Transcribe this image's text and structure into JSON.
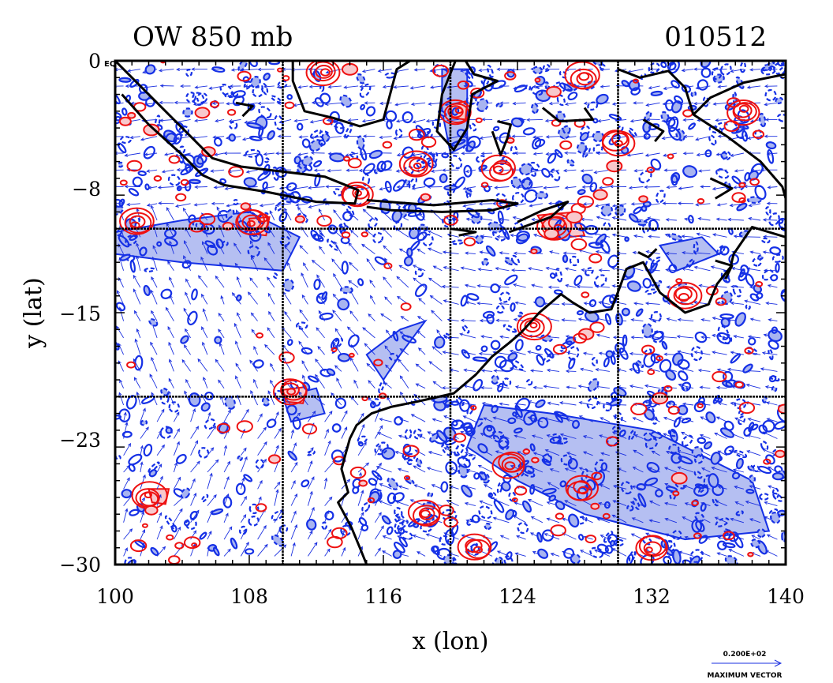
{
  "chart_data": {
    "type": "vector-contour-map",
    "title": "OW 850 mb",
    "date_label": "010512",
    "xlabel": "x (lon)",
    "ylabel": "y (lat)",
    "xlim": [
      100,
      140
    ],
    "ylim": [
      -30,
      0
    ],
    "x_ticks": [
      100,
      108,
      116,
      124,
      132,
      140
    ],
    "x_tick_labels": [
      "100",
      "108",
      "116",
      "124",
      "132",
      "140"
    ],
    "y_ticks": [
      0,
      -8,
      -15,
      -23,
      -30
    ],
    "y_tick_labels": [
      "0",
      "−8",
      "−15",
      "−23",
      "−30"
    ],
    "y_top_tag": "EQ",
    "grid_lon": [
      110,
      120,
      130
    ],
    "grid_lat": [
      -10,
      -20
    ],
    "vector_legend": {
      "value_label": "0.200E+02",
      "caption": "MAXIMUM VECTOR"
    },
    "colors": {
      "positive_contour": "#ee1111",
      "positive_fill": "#f8c8cc",
      "negative_contour": "#1530e6",
      "negative_fill": "#a8b4f0",
      "vector": "#1a2fe0",
      "coastline": "#000000",
      "grid": "#000000"
    },
    "red_contour_centers": [
      [
        126.3,
        -9.8
      ],
      [
        120.4,
        -3.0
      ],
      [
        114.5,
        -7.9
      ],
      [
        110.5,
        -19.7
      ],
      [
        108.2,
        -9.6
      ],
      [
        102.0,
        -26.0
      ],
      [
        101.3,
        -9.7
      ],
      [
        118.0,
        -6.2
      ],
      [
        123.0,
        -6.5
      ],
      [
        128.0,
        -1.0
      ],
      [
        121.5,
        -29.0
      ],
      [
        132.0,
        -29.0
      ],
      [
        127.8,
        -25.5
      ],
      [
        134.0,
        -14.0
      ],
      [
        137.5,
        -3.0
      ],
      [
        130.0,
        -4.8
      ],
      [
        112.5,
        -0.7
      ],
      [
        125.0,
        -15.8
      ],
      [
        118.5,
        -27.0
      ],
      [
        123.5,
        -24.0
      ]
    ],
    "blue_fill_regions": [
      [
        [
          100,
          -10.2
        ],
        [
          104,
          -9.5
        ],
        [
          108,
          -9
        ],
        [
          111,
          -10.5
        ],
        [
          110,
          -12.5
        ],
        [
          104,
          -12.0
        ],
        [
          100,
          -11.5
        ]
      ],
      [
        [
          122,
          -20.5
        ],
        [
          126,
          -21
        ],
        [
          132,
          -22
        ],
        [
          138,
          -25
        ],
        [
          139,
          -28
        ],
        [
          134,
          -28.5
        ],
        [
          128,
          -27
        ],
        [
          124,
          -25
        ],
        [
          121,
          -23
        ]
      ],
      [
        [
          132.5,
          -11
        ],
        [
          135,
          -10.5
        ],
        [
          136,
          -11.5
        ],
        [
          133.5,
          -12.5
        ]
      ],
      [
        [
          115,
          -17.5
        ],
        [
          117,
          -16
        ],
        [
          118.5,
          -15.5
        ],
        [
          117,
          -17.5
        ],
        [
          116,
          -19
        ]
      ],
      [
        [
          110,
          -20
        ],
        [
          112,
          -19.5
        ],
        [
          112.5,
          -21
        ],
        [
          110.5,
          -21.5
        ]
      ],
      [
        [
          119.5,
          -0.5
        ],
        [
          121,
          -0.5
        ],
        [
          121,
          -5
        ],
        [
          120,
          -5.5
        ],
        [
          119.5,
          -3
        ]
      ]
    ],
    "pink_fill_regions": [
      [
        [
          125.2,
          -9.2
        ],
        [
          127.5,
          -9.0
        ],
        [
          128.0,
          -10.4
        ],
        [
          126.0,
          -10.6
        ]
      ],
      [
        [
          110.0,
          -19.6
        ],
        [
          111.5,
          -19.4
        ],
        [
          111.2,
          -20.4
        ],
        [
          110.2,
          -20.3
        ]
      ],
      [
        [
          102.0,
          -25.5
        ],
        [
          103.2,
          -25.5
        ],
        [
          103.0,
          -26.4
        ],
        [
          102.2,
          -26.3
        ]
      ],
      [
        [
          108.0,
          -9.4
        ],
        [
          109.2,
          -9.3
        ],
        [
          109.0,
          -10.4
        ],
        [
          108.1,
          -10.3
        ]
      ],
      [
        [
          120.0,
          -2.6
        ],
        [
          121.0,
          -2.4
        ],
        [
          120.9,
          -3.5
        ],
        [
          120.1,
          -3.4
        ]
      ]
    ],
    "coastlines": [
      [
        [
          100.0,
          0.0
        ],
        [
          102.5,
          -2.5
        ],
        [
          104.5,
          -4.5
        ],
        [
          105.8,
          -5.8
        ],
        [
          107.5,
          -6.3
        ],
        [
          110.0,
          -6.6
        ],
        [
          112.5,
          -6.9
        ],
        [
          114.5,
          -7.7
        ],
        [
          114.3,
          -8.5
        ],
        [
          112.0,
          -8.4
        ],
        [
          109.0,
          -7.8
        ],
        [
          106.5,
          -7.4
        ],
        [
          105.2,
          -6.8
        ],
        [
          104.0,
          -5.6
        ],
        [
          102.0,
          -3.8
        ],
        [
          100.4,
          -2.0
        ]
      ],
      [
        [
          115.0,
          -8.3
        ],
        [
          119.0,
          -8.6
        ],
        [
          122.5,
          -8.3
        ],
        [
          124.0,
          -8.5
        ],
        [
          122.5,
          -8.9
        ],
        [
          119.5,
          -9.0
        ],
        [
          116.5,
          -8.9
        ],
        [
          115.0,
          -8.7
        ]
      ],
      [
        [
          120.0,
          -10.0
        ],
        [
          121.5,
          -10.2
        ],
        [
          120.5,
          -10.4
        ]
      ],
      [
        [
          123.5,
          -10.2
        ],
        [
          126.0,
          -9.3
        ],
        [
          127.0,
          -8.4
        ],
        [
          125.5,
          -8.9
        ],
        [
          124.0,
          -9.6
        ]
      ],
      [
        [
          110.6,
          0.0
        ],
        [
          110.6,
          -1.2
        ],
        [
          111.3,
          -3.0
        ],
        [
          113.0,
          -3.4
        ],
        [
          114.6,
          -3.9
        ],
        [
          116.0,
          -3.5
        ],
        [
          116.4,
          -2.0
        ],
        [
          116.8,
          -0.5
        ],
        [
          117.6,
          0.0
        ]
      ],
      [
        [
          120.3,
          0.0
        ],
        [
          119.5,
          -2.0
        ],
        [
          119.2,
          -4.2
        ],
        [
          120.2,
          -5.3
        ],
        [
          121.0,
          -4.0
        ],
        [
          121.3,
          -2.0
        ],
        [
          122.8,
          -1.2
        ],
        [
          121.4,
          -0.8
        ],
        [
          120.9,
          0.0
        ]
      ],
      [
        [
          122.5,
          -4.2
        ],
        [
          123.0,
          -5.6
        ],
        [
          123.4,
          -4.6
        ],
        [
          123.6,
          -3.8
        ],
        [
          122.8,
          -3.6
        ]
      ],
      [
        [
          125.5,
          -2.8
        ],
        [
          126.5,
          -3.6
        ],
        [
          128.5,
          -3.5
        ],
        [
          128.0,
          -2.8
        ]
      ],
      [
        [
          130.0,
          -0.5
        ],
        [
          131.3,
          -1.0
        ],
        [
          133.0,
          -0.6
        ],
        [
          134.0,
          -1.6
        ],
        [
          134.5,
          -3.2
        ],
        [
          136.5,
          -4.5
        ],
        [
          138.5,
          -6.0
        ],
        [
          139.8,
          -7.5
        ],
        [
          140.0,
          -8.2
        ]
      ],
      [
        [
          140.0,
          -0.8
        ],
        [
          137.5,
          -1.3
        ],
        [
          135.5,
          -2.2
        ],
        [
          134.5,
          -3.2
        ]
      ],
      [
        [
          140.0,
          -10.5
        ],
        [
          138.0,
          -9.9
        ],
        [
          136.9,
          -11.5
        ],
        [
          136.7,
          -12.3
        ],
        [
          135.9,
          -13.3
        ],
        [
          135.4,
          -14.5
        ],
        [
          134.0,
          -15.0
        ],
        [
          132.5,
          -13.8
        ],
        [
          131.5,
          -12.0
        ],
        [
          130.5,
          -12.4
        ],
        [
          130.1,
          -13.5
        ],
        [
          129.6,
          -14.8
        ],
        [
          128.3,
          -15.0
        ],
        [
          127.3,
          -14.4
        ],
        [
          126.6,
          -13.9
        ],
        [
          125.3,
          -15.0
        ],
        [
          124.2,
          -16.2
        ],
        [
          123.5,
          -16.8
        ],
        [
          122.5,
          -17.6
        ],
        [
          121.5,
          -18.7
        ],
        [
          120.2,
          -19.8
        ],
        [
          118.0,
          -20.3
        ],
        [
          116.5,
          -20.6
        ],
        [
          115.3,
          -21.0
        ],
        [
          114.4,
          -21.7
        ],
        [
          114.0,
          -22.5
        ],
        [
          113.5,
          -24.3
        ],
        [
          113.9,
          -25.7
        ],
        [
          113.3,
          -26.3
        ],
        [
          114.1,
          -27.8
        ],
        [
          114.6,
          -29.0
        ],
        [
          115.0,
          -30.0
        ]
      ],
      [
        [
          132.3,
          -11.2
        ],
        [
          131.8,
          -11.7
        ],
        [
          131.2,
          -11.4
        ]
      ],
      [
        [
          135.8,
          -11.9
        ],
        [
          136.8,
          -12.2
        ],
        [
          136.4,
          -13.0
        ]
      ],
      [
        [
          131.5,
          -3.5
        ],
        [
          132.7,
          -4.2
        ],
        [
          132.2,
          -4.8
        ]
      ],
      [
        [
          135.5,
          -7.0
        ],
        [
          136.8,
          -7.6
        ],
        [
          135.8,
          -8.2
        ]
      ],
      [
        [
          107.2,
          -2.5
        ],
        [
          108.2,
          -2.7
        ],
        [
          107.6,
          -3.3
        ]
      ]
    ]
  }
}
